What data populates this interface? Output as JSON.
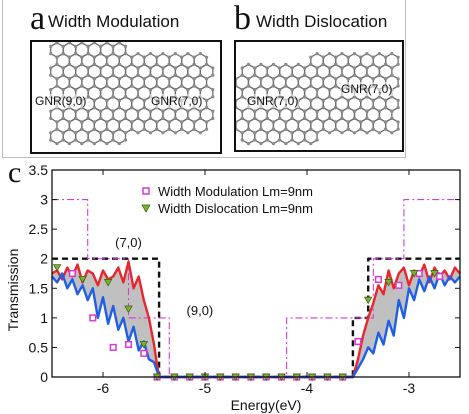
{
  "panels": {
    "a": {
      "letter": "a",
      "title": "Width Modulation",
      "label_left": "GNR(9,0)",
      "label_right": "GNR(7,0)"
    },
    "b": {
      "letter": "b",
      "title": "Width Dislocation",
      "label_left": "GNR(7,0)",
      "label_right": "GNR(7,0)"
    }
  },
  "colors": {
    "modulation": "#e8262b",
    "dislocation": "#1f5fe6",
    "shade": "#b5b5b5",
    "gnr70": "#111111",
    "gnr90": "#d63ad6"
  },
  "chart_data": {
    "panel_letter": "c",
    "type": "line",
    "xlabel": "Energy(eV)",
    "ylabel": "Transmission",
    "xlim": [
      -6.5,
      -2.5
    ],
    "ylim": [
      0,
      3.5
    ],
    "xticks": [
      -6,
      -5,
      -4,
      -3
    ],
    "yticks": [
      0,
      0.5,
      1,
      1.5,
      2,
      2.5,
      3,
      3.5
    ],
    "annotations": [
      {
        "text": "(7,0)",
        "x": -5.75,
        "y": 2.2
      },
      {
        "text": "(9,0)",
        "x": -5.05,
        "y": 1.05
      }
    ],
    "legend": [
      {
        "label": "Width Modulation Lm=9nm",
        "marker": "square",
        "color": "#d63ad6"
      },
      {
        "label": "Width Dislocation Lm=9nm",
        "marker": "triangle",
        "color": "#7ab32e"
      }
    ],
    "series": [
      {
        "name": "GNR(7,0)",
        "style": "dashed",
        "color": "#111111",
        "x": [
          -6.5,
          -5.45,
          -5.45,
          -3.55,
          -3.55,
          -3.4,
          -3.4,
          -2.5
        ],
        "y": [
          2,
          2,
          0,
          0,
          1,
          1,
          2,
          2
        ]
      },
      {
        "name": "GNR(9,0)",
        "style": "dashdot",
        "color": "#d63ad6",
        "x": [
          -6.5,
          -6.15,
          -6.15,
          -5.75,
          -5.75,
          -5.35,
          -5.35,
          -4.2,
          -4.2,
          -3.35,
          -3.35,
          -3.05,
          -3.05,
          -2.5
        ],
        "y": [
          3,
          3,
          2,
          2,
          1,
          1,
          0,
          0,
          1,
          1,
          2,
          2,
          3,
          3
        ]
      },
      {
        "name": "Width Modulation Lm=9nm",
        "color": "#e8262b",
        "x": [
          -6.5,
          -6.45,
          -6.4,
          -6.35,
          -6.3,
          -6.25,
          -6.2,
          -6.15,
          -6.1,
          -6.05,
          -6.0,
          -5.95,
          -5.9,
          -5.85,
          -5.8,
          -5.75,
          -5.7,
          -5.65,
          -5.6,
          -5.55,
          -5.5,
          -5.47,
          -5.45,
          -3.55,
          -3.5,
          -3.45,
          -3.4,
          -3.35,
          -3.3,
          -3.25,
          -3.2,
          -3.15,
          -3.1,
          -3.05,
          -3.0,
          -2.95,
          -2.9,
          -2.85,
          -2.8,
          -2.75,
          -2.7,
          -2.65,
          -2.6,
          -2.55,
          -2.5
        ],
        "y": [
          1.75,
          1.8,
          1.65,
          1.85,
          1.7,
          1.9,
          1.6,
          1.8,
          1.75,
          1.55,
          1.8,
          1.65,
          1.7,
          1.85,
          1.6,
          1.95,
          1.5,
          1.7,
          1.3,
          1.0,
          0.55,
          0.2,
          0,
          0,
          0.3,
          0.7,
          1.0,
          1.25,
          1.55,
          1.4,
          1.8,
          1.5,
          1.75,
          1.85,
          1.55,
          1.8,
          1.7,
          1.9,
          1.6,
          1.85,
          1.7,
          1.8,
          1.65,
          1.85,
          1.75
        ]
      },
      {
        "name": "Width Dislocation Lm=9nm",
        "color": "#1f5fe6",
        "x": [
          -6.5,
          -6.45,
          -6.4,
          -6.35,
          -6.3,
          -6.25,
          -6.2,
          -6.15,
          -6.1,
          -6.05,
          -6.0,
          -5.95,
          -5.9,
          -5.85,
          -5.8,
          -5.75,
          -5.7,
          -5.65,
          -5.6,
          -5.55,
          -5.5,
          -5.47,
          -5.45,
          -3.55,
          -3.5,
          -3.45,
          -3.4,
          -3.35,
          -3.3,
          -3.25,
          -3.2,
          -3.15,
          -3.1,
          -3.05,
          -3.0,
          -2.95,
          -2.9,
          -2.85,
          -2.8,
          -2.75,
          -2.7,
          -2.65,
          -2.6,
          -2.55,
          -2.5
        ],
        "y": [
          1.7,
          1.6,
          1.75,
          1.5,
          1.65,
          1.4,
          1.55,
          1.3,
          1.5,
          1.0,
          1.35,
          0.9,
          1.2,
          0.8,
          1.0,
          0.6,
          0.85,
          0.45,
          0.6,
          0.3,
          0.25,
          0.1,
          0,
          0,
          0.15,
          0.3,
          0.5,
          0.4,
          0.75,
          0.55,
          0.95,
          0.7,
          1.3,
          1.0,
          1.5,
          1.3,
          1.65,
          1.45,
          1.7,
          1.5,
          1.75,
          1.55,
          1.7,
          1.6,
          1.7
        ]
      }
    ],
    "markers": [
      {
        "series": "Width Modulation Lm=9nm",
        "marker": "square",
        "color": "#d63ad6",
        "x": [
          -6.3,
          -6.1,
          -5.9,
          -5.75,
          -5.6,
          -5.47,
          -5.3,
          -5.15,
          -5.0,
          -4.85,
          -4.7,
          -4.55,
          -4.4,
          -4.25,
          -4.1,
          -3.95,
          -3.8,
          -3.65,
          -3.5,
          -3.3,
          -3.1,
          -2.9,
          -2.7
        ],
        "y": [
          1.75,
          1.0,
          0.5,
          0.55,
          0.4,
          0.0,
          0,
          0,
          0,
          0,
          0,
          0,
          0,
          0,
          0,
          0,
          0,
          0,
          0.6,
          1.65,
          1.55,
          1.75,
          1.7
        ]
      },
      {
        "series": "Width Dislocation Lm=9nm",
        "marker": "triangle",
        "color": "#7ab32e",
        "x": [
          -6.45,
          -6.2,
          -5.95,
          -5.75,
          -5.6,
          -5.47,
          -5.3,
          -5.15,
          -5.0,
          -4.85,
          -4.7,
          -4.55,
          -4.4,
          -4.25,
          -4.1,
          -3.95,
          -3.8,
          -3.65,
          -3.4,
          -3.2,
          -2.95,
          -2.75
        ],
        "y": [
          1.85,
          1.65,
          1.6,
          1.15,
          0.55,
          0.0,
          0,
          0,
          0,
          0,
          0,
          0,
          0,
          0,
          0,
          0,
          0,
          0,
          1.3,
          1.6,
          1.75,
          1.75
        ]
      }
    ]
  }
}
